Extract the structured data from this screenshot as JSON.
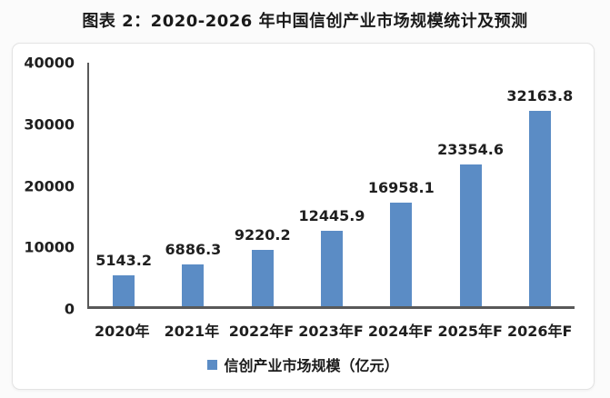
{
  "title": "图表 2：2020-2026 年中国信创产业市场规模统计及预测",
  "colors": {
    "bar": "#5b8cc5",
    "axis": "#595959",
    "text": "#1f1f1f",
    "panel_border": "#e3e3e3",
    "panel_background": "#ffffff"
  },
  "chart_data": {
    "type": "bar",
    "title": "图表 2：2020-2026 年中国信创产业市场规模统计及预测",
    "categories": [
      "2020年",
      "2021年",
      "2022年F",
      "2023年F",
      "2024年F",
      "2025年F",
      "2026年F"
    ],
    "values": [
      5143.2,
      6886.3,
      9220.2,
      12445.9,
      16958.1,
      23354.6,
      32163.8
    ],
    "value_labels": [
      "5143.2",
      "6886.3",
      "9220.2",
      "12445.9",
      "16958.1",
      "23354.6",
      "32163.8"
    ],
    "series_name": "信创产业市场规模（亿元）",
    "legend": "信创产业市场规模（亿元）",
    "legend_position": "bottom",
    "xlabel": "",
    "ylabel": "",
    "ylim": [
      0,
      40000
    ],
    "yticks": [
      0,
      10000,
      20000,
      30000,
      40000
    ],
    "grid": false
  }
}
